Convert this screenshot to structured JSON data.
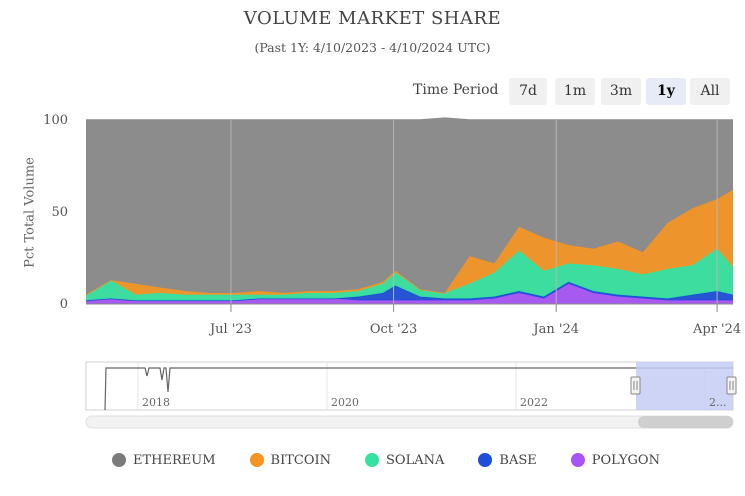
{
  "header": {
    "title": "VOLUME MARKET SHARE",
    "subtitle": "(Past 1Y: 4/10/2023 - 4/10/2024 UTC)"
  },
  "period": {
    "label": "Time Period",
    "buttons": [
      "7d",
      "1m",
      "3m",
      "1y",
      "All"
    ],
    "selected": "1y"
  },
  "navigator": {
    "tick_labels": [
      "2018",
      "2020",
      "2022",
      "2..."
    ]
  },
  "chart_data": {
    "type": "area",
    "stacked": true,
    "title": "VOLUME MARKET SHARE",
    "subtitle": "(Past 1Y: 4/10/2023 - 4/10/2024 UTC)",
    "ylabel": "Pct Total Volume",
    "xlabel": "",
    "ylim": [
      0,
      100
    ],
    "yticks": [
      0,
      50,
      100
    ],
    "xticks": [
      "Jul '23",
      "Oct '23",
      "Jan '24",
      "Apr '24"
    ],
    "x_dates": [
      "2023-04-10",
      "2023-04-24",
      "2023-05-08",
      "2023-05-22",
      "2023-06-05",
      "2023-06-19",
      "2023-07-03",
      "2023-07-17",
      "2023-07-31",
      "2023-08-14",
      "2023-08-28",
      "2023-09-11",
      "2023-09-25",
      "2023-10-02",
      "2023-10-16",
      "2023-10-30",
      "2023-11-13",
      "2023-11-27",
      "2023-12-11",
      "2023-12-25",
      "2024-01-08",
      "2024-01-22",
      "2024-02-05",
      "2024-02-19",
      "2024-03-04",
      "2024-03-18",
      "2024-04-01",
      "2024-04-10"
    ],
    "x": [
      0,
      14,
      28,
      42,
      56,
      70,
      84,
      98,
      112,
      126,
      140,
      154,
      168,
      175,
      189,
      203,
      217,
      231,
      245,
      259,
      273,
      287,
      301,
      315,
      329,
      343,
      357,
      366
    ],
    "series": [
      {
        "name": "POLYGON",
        "color": "#a855f7",
        "values": [
          2,
          3,
          2,
          2,
          2,
          2,
          2,
          3,
          3,
          3,
          3,
          2,
          2,
          2,
          2,
          2,
          2,
          3,
          6,
          3,
          11,
          6,
          4,
          3,
          2,
          2,
          2,
          2
        ]
      },
      {
        "name": "BASE",
        "color": "#1d4ed8",
        "values": [
          0,
          0,
          0,
          0,
          0,
          0,
          0,
          0,
          0,
          0,
          0,
          2,
          4,
          8,
          2,
          1,
          1,
          1,
          1,
          1,
          1,
          1,
          1,
          1,
          1,
          3,
          5,
          3
        ]
      },
      {
        "name": "SOLANA",
        "color": "#34e3a0",
        "values": [
          3,
          10,
          3,
          4,
          3,
          3,
          3,
          2,
          2,
          3,
          3,
          3,
          5,
          7,
          4,
          3,
          8,
          13,
          22,
          14,
          10,
          14,
          14,
          12,
          16,
          16,
          23,
          15
        ]
      },
      {
        "name": "BITCOIN",
        "color": "#f59423",
        "values": [
          0,
          0,
          6,
          3,
          2,
          1,
          1,
          2,
          1,
          1,
          1,
          1,
          1,
          1,
          0,
          0,
          15,
          5,
          13,
          18,
          10,
          9,
          15,
          12,
          25,
          31,
          27,
          42
        ]
      },
      {
        "name": "ETHEREUM",
        "color": "#8c8c8c",
        "values": [
          95,
          87,
          89,
          91,
          93,
          94,
          94,
          93,
          94,
          93,
          93,
          92,
          88,
          82,
          92,
          95,
          74,
          78,
          58,
          64,
          68,
          70,
          66,
          72,
          56,
          48,
          43,
          38
        ]
      }
    ],
    "legend": [
      "ETHEREUM",
      "BITCOIN",
      "SOLANA",
      "BASE",
      "POLYGON"
    ],
    "legend_colors": [
      "#7a7a7a",
      "#f59423",
      "#34e3a0",
      "#1d4ed8",
      "#a855f7"
    ],
    "legend_position": "bottom"
  }
}
